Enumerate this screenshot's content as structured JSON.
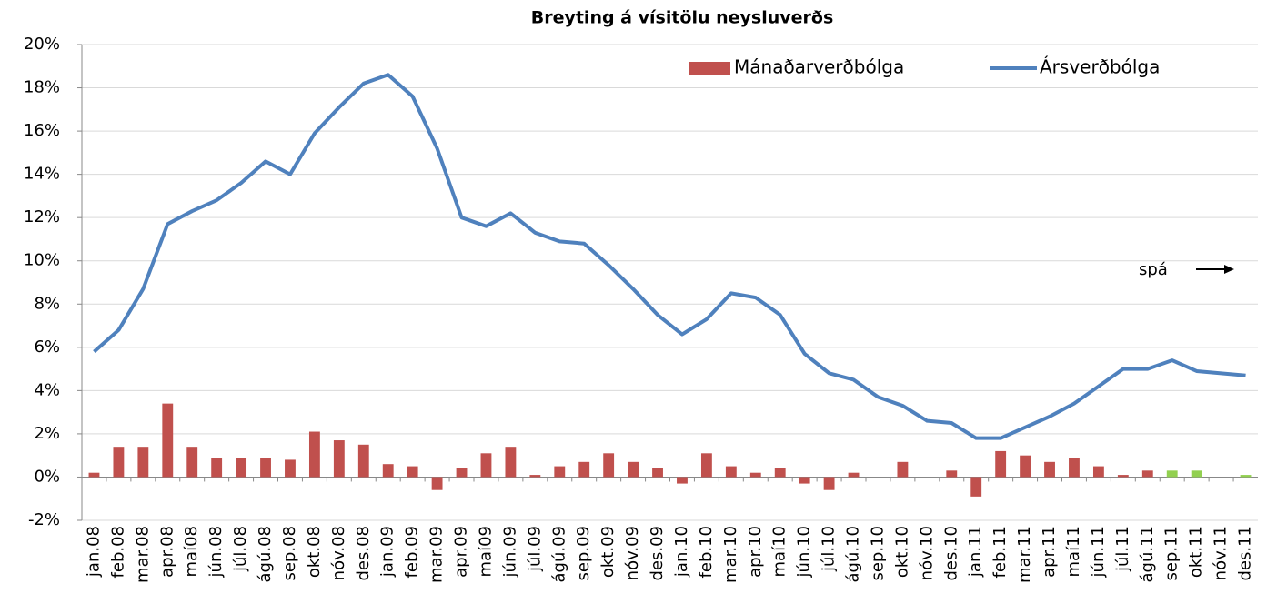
{
  "chart_data": {
    "type": "bar_line",
    "title": "Breyting á vísitölu neysluverðs",
    "categories": [
      "jan.08",
      "feb.08",
      "mar.08",
      "apr.08",
      "maí08",
      "jún.08",
      "júl.08",
      "ágú.08",
      "sep.08",
      "okt.08",
      "nóv.08",
      "des.08",
      "jan.09",
      "feb.09",
      "mar.09",
      "apr.09",
      "maí09",
      "jún.09",
      "júl.09",
      "ágú.09",
      "sep.09",
      "okt.09",
      "nóv.09",
      "des.09",
      "jan.10",
      "feb.10",
      "mar.10",
      "apr.10",
      "maí10",
      "jún.10",
      "júl.10",
      "ágú.10",
      "sep.10",
      "okt.10",
      "nóv.10",
      "des.10",
      "jan.11",
      "feb.11",
      "mar.11",
      "apr.11",
      "maí11",
      "jún.11",
      "júl.11",
      "ágú.11",
      "sep.11",
      "okt.11",
      "nóv.11",
      "des.11"
    ],
    "series": [
      {
        "name": "Mánaðarverðbólga",
        "type": "bar",
        "color": "#c0504d",
        "point_colors": [
          "#c0504d",
          "#c0504d",
          "#c0504d",
          "#c0504d",
          "#c0504d",
          "#c0504d",
          "#c0504d",
          "#c0504d",
          "#c0504d",
          "#c0504d",
          "#c0504d",
          "#c0504d",
          "#c0504d",
          "#c0504d",
          "#c0504d",
          "#c0504d",
          "#c0504d",
          "#c0504d",
          "#c0504d",
          "#c0504d",
          "#c0504d",
          "#c0504d",
          "#c0504d",
          "#c0504d",
          "#c0504d",
          "#c0504d",
          "#c0504d",
          "#c0504d",
          "#c0504d",
          "#c0504d",
          "#c0504d",
          "#c0504d",
          "#c0504d",
          "#c0504d",
          "#c0504d",
          "#c0504d",
          "#c0504d",
          "#c0504d",
          "#c0504d",
          "#c0504d",
          "#c0504d",
          "#c0504d",
          "#c0504d",
          "#c0504d",
          "#92d050",
          "#92d050",
          "#92d050",
          "#92d050"
        ],
        "values": [
          0.2,
          1.4,
          1.4,
          3.4,
          1.4,
          0.9,
          0.9,
          0.9,
          0.8,
          2.1,
          1.7,
          1.5,
          0.6,
          0.5,
          -0.6,
          0.4,
          1.1,
          1.4,
          0.1,
          0.5,
          0.7,
          1.1,
          0.7,
          0.4,
          -0.3,
          1.1,
          0.5,
          0.2,
          0.4,
          -0.3,
          -0.6,
          0.2,
          0,
          0.7,
          0,
          0.3,
          -0.9,
          1.2,
          1.0,
          0.7,
          0.9,
          0.5,
          0.1,
          0.3,
          0.3,
          0.3,
          0,
          0.1
        ]
      },
      {
        "name": "Ársverðbólga",
        "type": "line",
        "color": "#4f81bd",
        "values": [
          5.8,
          6.8,
          8.7,
          11.7,
          12.3,
          12.8,
          13.6,
          14.6,
          14.0,
          15.9,
          17.1,
          18.2,
          18.6,
          17.6,
          15.2,
          12.0,
          11.6,
          12.2,
          11.3,
          10.9,
          10.8,
          9.8,
          8.7,
          7.5,
          6.6,
          7.3,
          8.5,
          8.3,
          7.5,
          5.7,
          4.8,
          4.5,
          3.7,
          3.3,
          2.6,
          2.5,
          1.8,
          1.8,
          2.3,
          2.8,
          3.4,
          4.2,
          5.0,
          5.0,
          5.4,
          4.9,
          4.8,
          4.7
        ]
      }
    ],
    "ylim": [
      -2,
      20
    ],
    "yticks": [
      {
        "value": -2,
        "label": "-2%"
      },
      {
        "value": 0,
        "label": "0%"
      },
      {
        "value": 2,
        "label": "2%"
      },
      {
        "value": 4,
        "label": "4%"
      },
      {
        "value": 6,
        "label": "6%"
      },
      {
        "value": 8,
        "label": "8%"
      },
      {
        "value": 10,
        "label": "10%"
      },
      {
        "value": 12,
        "label": "12%"
      },
      {
        "value": 14,
        "label": "14%"
      },
      {
        "value": 16,
        "label": "16%"
      },
      {
        "value": 18,
        "label": "18%"
      },
      {
        "value": 20,
        "label": "20%"
      }
    ],
    "grid": true,
    "legend": "top-right",
    "annotations": [
      "spá"
    ]
  }
}
